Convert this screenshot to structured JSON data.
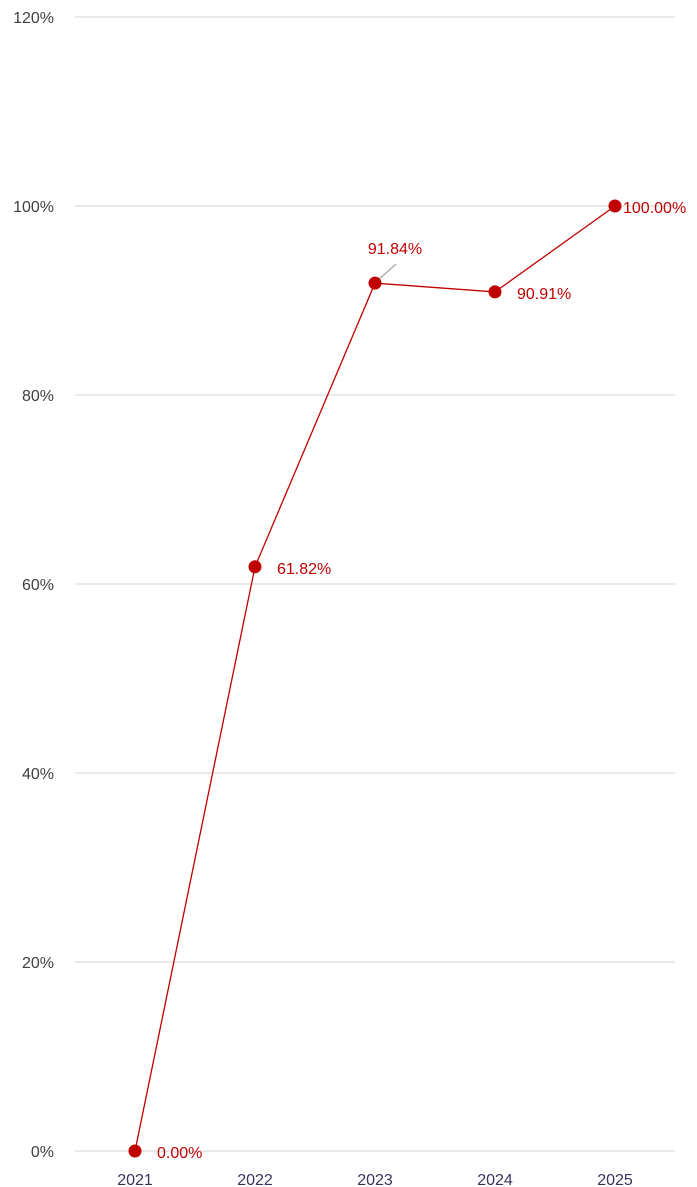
{
  "chart_data": {
    "type": "line",
    "title": "",
    "xlabel": "",
    "ylabel": "",
    "categories": [
      "2021",
      "2022",
      "2023",
      "2024",
      "2025"
    ],
    "series": [
      {
        "values": [
          0.0,
          61.82,
          91.84,
          90.91,
          100.0
        ],
        "labels": [
          "0.00%",
          "61.82%",
          "91.84%",
          "90.91%",
          "100.00%"
        ],
        "color": "#c00000"
      }
    ],
    "ylim": [
      0,
      120
    ],
    "yticks": [
      0,
      20,
      40,
      60,
      80,
      100,
      120
    ],
    "ytick_labels": [
      "0%",
      "20%",
      "40%",
      "60%",
      "80%",
      "100%",
      "120%"
    ],
    "grid": true,
    "legend": "none",
    "colors": {
      "series": "#c00000",
      "grid": "#d9d9d9",
      "leader": "#a6a6a6",
      "y_tick_text": "#404040",
      "x_tick_text": "#3a3560"
    }
  }
}
